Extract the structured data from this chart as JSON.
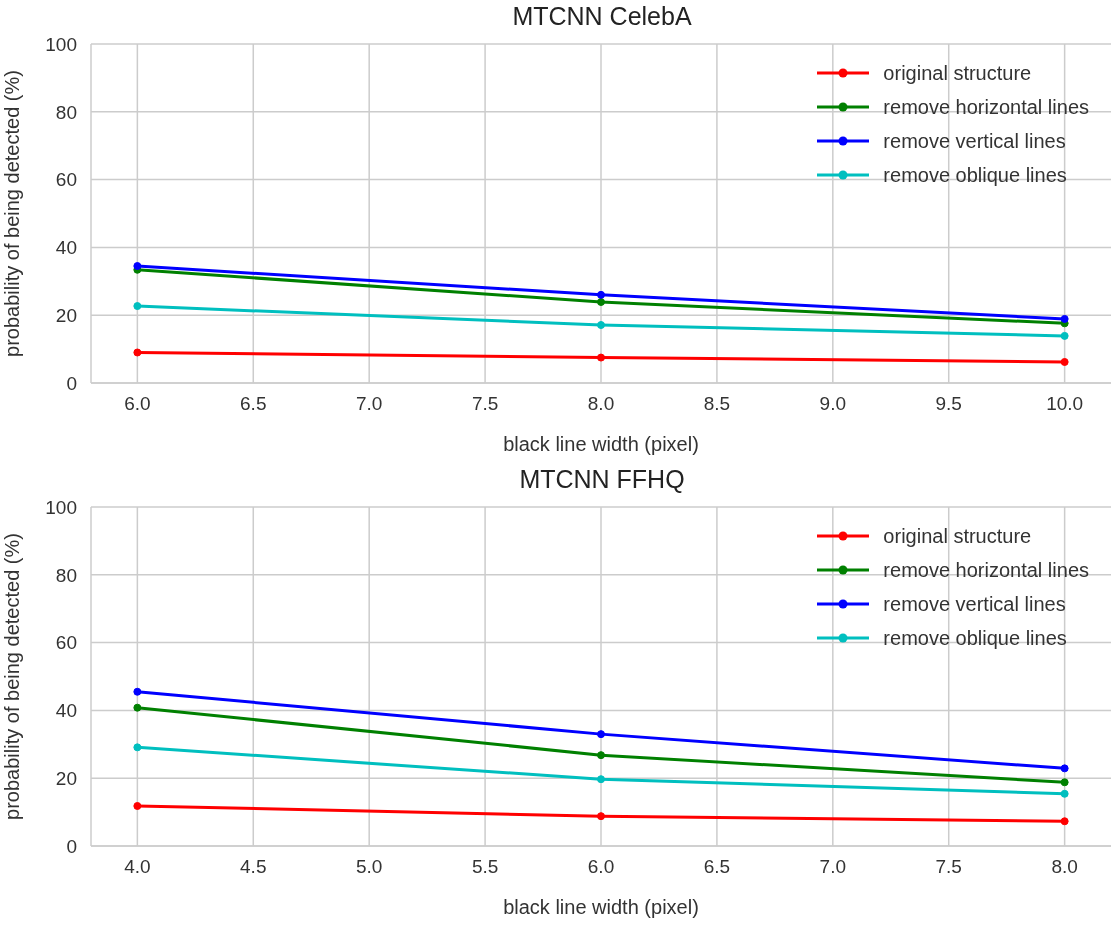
{
  "chart_data": [
    {
      "type": "line",
      "title": "MTCNN CelebA",
      "xlabel": "black line width (pixel)",
      "ylabel": "probability of being detected (%)",
      "x": [
        6.0,
        8.0,
        10.0
      ],
      "xlim": [
        5.8,
        10.2
      ],
      "xticks": [
        {
          "value": 6.0,
          "label": "6.0"
        },
        {
          "value": 6.5,
          "label": "6.5"
        },
        {
          "value": 7.0,
          "label": "7.0"
        },
        {
          "value": 7.5,
          "label": "7.5"
        },
        {
          "value": 8.0,
          "label": "8.0"
        },
        {
          "value": 8.5,
          "label": "8.5"
        },
        {
          "value": 9.0,
          "label": "9.0"
        },
        {
          "value": 9.5,
          "label": "9.5"
        },
        {
          "value": 10.0,
          "label": "10.0"
        }
      ],
      "ylim": [
        0,
        100
      ],
      "yticks": [
        0,
        20,
        40,
        60,
        80,
        100
      ],
      "grid": true,
      "legend": "top right",
      "marker": "circle",
      "line_style": "solid",
      "series": [
        {
          "name": "original structure",
          "color": "#ff0000",
          "values": [
            9,
            7.5,
            6.2
          ]
        },
        {
          "name": "remove horizontal lines",
          "color": "#008000",
          "values": [
            33.4,
            23.9,
            17.6
          ]
        },
        {
          "name": "remove vertical lines",
          "color": "#0000ff",
          "values": [
            34.5,
            26,
            18.9
          ]
        },
        {
          "name": "remove oblique lines",
          "color": "#00bfbf",
          "values": [
            22.7,
            17.1,
            13.9
          ]
        }
      ]
    },
    {
      "type": "line",
      "title": "MTCNN FFHQ",
      "xlabel": "black line width (pixel)",
      "ylabel": "probability of being detected (%)",
      "x": [
        4.0,
        6.0,
        8.0
      ],
      "xlim": [
        3.8,
        8.2
      ],
      "xticks": [
        {
          "value": 4.0,
          "label": "4.0"
        },
        {
          "value": 4.5,
          "label": "4.5"
        },
        {
          "value": 5.0,
          "label": "5.0"
        },
        {
          "value": 5.5,
          "label": "5.5"
        },
        {
          "value": 6.0,
          "label": "6.0"
        },
        {
          "value": 6.5,
          "label": "6.5"
        },
        {
          "value": 7.0,
          "label": "7.0"
        },
        {
          "value": 7.5,
          "label": "7.5"
        },
        {
          "value": 8.0,
          "label": "8.0"
        }
      ],
      "ylim": [
        0,
        100
      ],
      "yticks": [
        0,
        20,
        40,
        60,
        80,
        100
      ],
      "grid": true,
      "legend": "top right",
      "marker": "circle",
      "line_style": "solid",
      "series": [
        {
          "name": "original structure",
          "color": "#ff0000",
          "values": [
            11.8,
            8.8,
            7.3
          ]
        },
        {
          "name": "remove horizontal lines",
          "color": "#008000",
          "values": [
            40.8,
            26.8,
            18.8
          ]
        },
        {
          "name": "remove vertical lines",
          "color": "#0000ff",
          "values": [
            45.5,
            33,
            22.9
          ]
        },
        {
          "name": "remove oblique lines",
          "color": "#00bfbf",
          "values": [
            29.1,
            19.7,
            15.4
          ]
        }
      ]
    }
  ]
}
